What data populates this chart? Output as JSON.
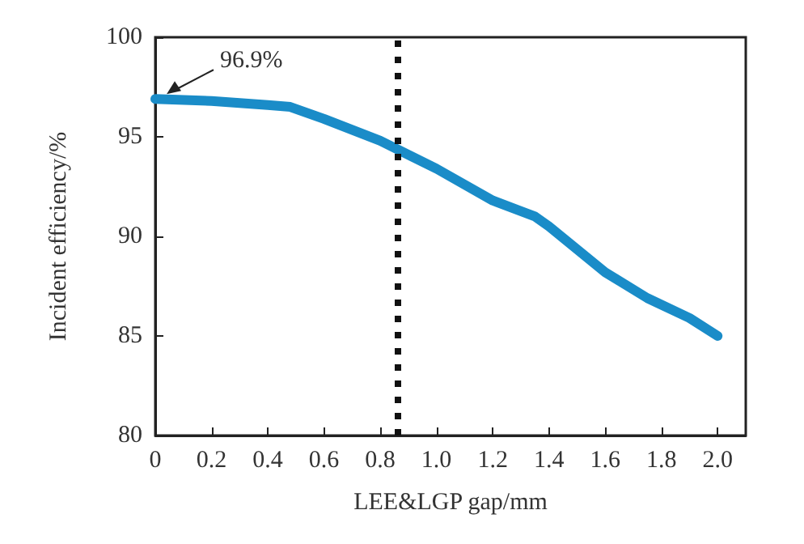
{
  "chart_data": {
    "type": "line",
    "xlabel": "LEE&LGP gap/mm",
    "ylabel": "Incident efficiency/%",
    "xlim": [
      0,
      2.1
    ],
    "xticks": [
      {
        "value": 0,
        "label": "0"
      },
      0.2,
      0.4,
      0.6,
      0.8,
      {
        "value": 1,
        "label": "1.0"
      },
      1.2,
      1.4,
      1.6,
      1.8,
      {
        "value": 2,
        "label": "2.0"
      }
    ],
    "ylim": [
      80,
      100
    ],
    "yticks": [
      80,
      85,
      90,
      95,
      100
    ],
    "grid": false,
    "marker": "none",
    "line_style": "solid",
    "series": [
      {
        "color": "#1a8cc8",
        "x": [
          0,
          0.2,
          0.3,
          0.4,
          0.48,
          0.6,
          0.8,
          1.0,
          1.2,
          1.35,
          1.4,
          1.6,
          1.75,
          1.9,
          2.0
        ],
        "values": [
          96.9,
          96.8,
          96.7,
          96.6,
          96.5,
          95.9,
          94.8,
          93.4,
          91.8,
          91.0,
          90.5,
          88.2,
          86.9,
          85.9,
          85.0
        ]
      }
    ],
    "ref_lines": [
      {
        "axis": "x",
        "value": 0.86,
        "color": "#111111",
        "line_style": "dotted"
      }
    ],
    "annotations": [
      {
        "text": "96.9%",
        "x": 0,
        "y": 96.9
      }
    ]
  }
}
